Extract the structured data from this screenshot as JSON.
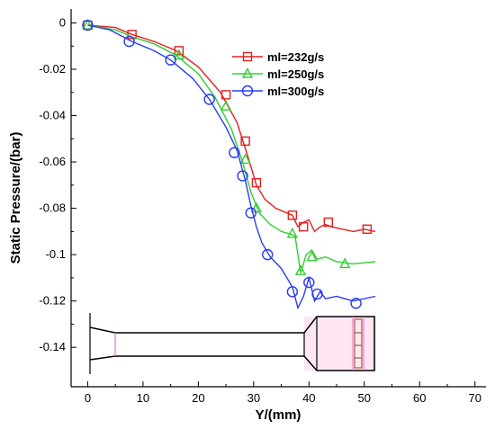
{
  "chart_data": {
    "type": "line",
    "title": "",
    "xlabel": "Y/(mm)",
    "ylabel": "Static Pressure/(bar)",
    "xlim": [
      -3,
      72
    ],
    "ylim": [
      -0.157,
      0.006
    ],
    "x_ticks": [
      0,
      10,
      20,
      30,
      40,
      50,
      60,
      70
    ],
    "y_ticks": [
      0,
      -0.02,
      -0.04,
      -0.06,
      -0.08,
      -0.1,
      -0.12,
      -0.14
    ],
    "y_tick_labels": [
      "0",
      "-0.02",
      "-0.04",
      "-0.06",
      "-0.08",
      "-0.1",
      "-0.12",
      "-0.14"
    ],
    "grid": false,
    "legend_position": "top-right",
    "series": [
      {
        "name": "ml=232g/s",
        "color": "#e02020",
        "marker": "square",
        "curve": [
          [
            0,
            -0.001
          ],
          [
            5,
            -0.002
          ],
          [
            8,
            -0.005
          ],
          [
            12,
            -0.008
          ],
          [
            16,
            -0.012
          ],
          [
            20,
            -0.019
          ],
          [
            24,
            -0.03
          ],
          [
            27,
            -0.043
          ],
          [
            29,
            -0.058
          ],
          [
            30.5,
            -0.07
          ],
          [
            32,
            -0.076
          ],
          [
            34,
            -0.08
          ],
          [
            36,
            -0.082
          ],
          [
            37,
            -0.083
          ],
          [
            38,
            -0.088
          ],
          [
            39,
            -0.086
          ],
          [
            40,
            -0.085
          ],
          [
            41,
            -0.09
          ],
          [
            42,
            -0.088
          ],
          [
            43,
            -0.087
          ],
          [
            44,
            -0.088
          ],
          [
            46,
            -0.089
          ],
          [
            48,
            -0.09
          ],
          [
            50,
            -0.089
          ],
          [
            52,
            -0.09
          ]
        ],
        "markers": [
          [
            0,
            -0.001
          ],
          [
            8,
            -0.005
          ],
          [
            16.5,
            -0.012
          ],
          [
            25,
            -0.031
          ],
          [
            28.5,
            -0.051
          ],
          [
            30.5,
            -0.069
          ],
          [
            37,
            -0.083
          ],
          [
            39,
            -0.088
          ],
          [
            43.5,
            -0.086
          ],
          [
            50.5,
            -0.089
          ]
        ]
      },
      {
        "name": "ml=250g/s",
        "color": "#32cd32",
        "marker": "triangle",
        "curve": [
          [
            0,
            -0.001
          ],
          [
            5,
            -0.003
          ],
          [
            8,
            -0.006
          ],
          [
            12,
            -0.009
          ],
          [
            16,
            -0.014
          ],
          [
            20,
            -0.022
          ],
          [
            23,
            -0.032
          ],
          [
            26,
            -0.046
          ],
          [
            28,
            -0.06
          ],
          [
            29.5,
            -0.073
          ],
          [
            31,
            -0.082
          ],
          [
            33,
            -0.087
          ],
          [
            35,
            -0.09
          ],
          [
            36.5,
            -0.091
          ],
          [
            37.5,
            -0.092
          ],
          [
            38.5,
            -0.108
          ],
          [
            39.5,
            -0.1
          ],
          [
            40.5,
            -0.098
          ],
          [
            41.5,
            -0.102
          ],
          [
            43,
            -0.101
          ],
          [
            45,
            -0.103
          ],
          [
            48,
            -0.104
          ],
          [
            52,
            -0.103
          ]
        ],
        "markers": [
          [
            0,
            -0.001
          ],
          [
            16.5,
            -0.014
          ],
          [
            25,
            -0.036
          ],
          [
            28.5,
            -0.059
          ],
          [
            30.5,
            -0.08
          ],
          [
            37,
            -0.091
          ],
          [
            38.5,
            -0.107
          ],
          [
            40.5,
            -0.101
          ],
          [
            46.5,
            -0.104
          ]
        ]
      },
      {
        "name": "ml=300g/s",
        "color": "#2a3cf0",
        "marker": "circle",
        "curve": [
          [
            0,
            -0.001
          ],
          [
            4,
            -0.003
          ],
          [
            8,
            -0.008
          ],
          [
            12,
            -0.012
          ],
          [
            15,
            -0.016
          ],
          [
            19,
            -0.024
          ],
          [
            22,
            -0.033
          ],
          [
            25,
            -0.045
          ],
          [
            27,
            -0.055
          ],
          [
            28.5,
            -0.068
          ],
          [
            29.5,
            -0.079
          ],
          [
            30.5,
            -0.088
          ],
          [
            31.5,
            -0.095
          ],
          [
            33,
            -0.101
          ],
          [
            35,
            -0.106
          ],
          [
            37,
            -0.114
          ],
          [
            38,
            -0.123
          ],
          [
            39,
            -0.118
          ],
          [
            40,
            -0.11
          ],
          [
            41,
            -0.12
          ],
          [
            42,
            -0.116
          ],
          [
            43,
            -0.119
          ],
          [
            45,
            -0.118
          ],
          [
            48,
            -0.12
          ],
          [
            52,
            -0.118
          ]
        ],
        "markers": [
          [
            0,
            -0.001
          ],
          [
            7.5,
            -0.008
          ],
          [
            15,
            -0.016
          ],
          [
            22,
            -0.033
          ],
          [
            26.5,
            -0.056
          ],
          [
            28,
            -0.066
          ],
          [
            29.5,
            -0.082
          ],
          [
            32.5,
            -0.1
          ],
          [
            37,
            -0.116
          ],
          [
            40,
            -0.112
          ],
          [
            41.5,
            -0.117
          ],
          [
            48.5,
            -0.121
          ]
        ]
      }
    ]
  },
  "inset": {
    "description_icon": "nozzle-geometry-schematic",
    "line_color": "#000000",
    "accent_color": "#ff66cc"
  }
}
